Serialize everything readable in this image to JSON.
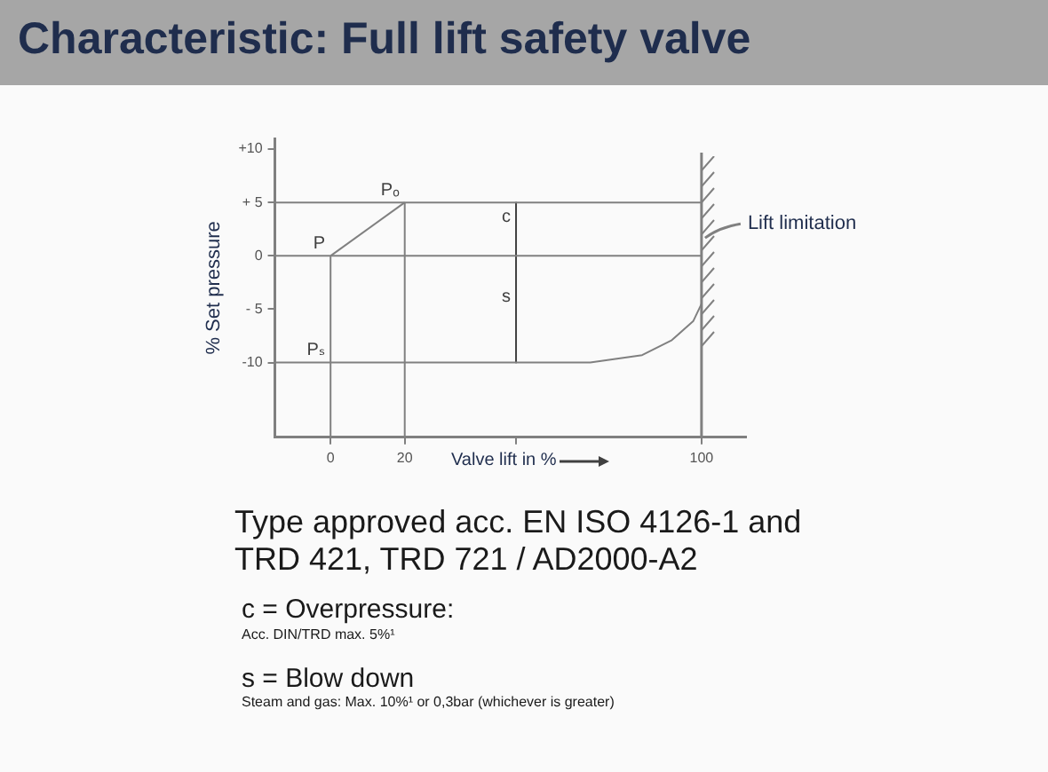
{
  "chart_data": {
    "type": "line",
    "title": "Characteristic: Full lift safety valve",
    "xlabel": "Valve lift in %",
    "ylabel": "% Set pressure",
    "xlim": [
      -15,
      112
    ],
    "ylim": [
      -17,
      11
    ],
    "xticks": [
      0,
      20,
      {
        "value": 50,
        "label": null
      },
      100
    ],
    "yticks": [
      {
        "value": 10,
        "label": "+10"
      },
      {
        "value": 5,
        "label": "+ 5"
      },
      0,
      {
        "value": -5,
        "label": "- 5"
      },
      -10
    ],
    "grid": false,
    "legend": false,
    "marker": "none",
    "line_style": "solid",
    "series": [
      {
        "color": "#808080",
        "x": [
          0,
          20
        ],
        "values": [
          0,
          5
        ]
      },
      {
        "color": "#808080",
        "x": [
          -15,
          100
        ],
        "values": [
          5,
          5
        ]
      },
      {
        "color": "#808080",
        "x": [
          -15,
          100
        ],
        "values": [
          0,
          0
        ]
      },
      {
        "color": "#808080",
        "x": [
          -15,
          70,
          84,
          92,
          97.8,
          100
        ],
        "values": [
          -10,
          -10,
          -9.3,
          -7.9,
          -6.1,
          -4.5
        ]
      },
      {
        "color": "#808080",
        "x": [
          0,
          0
        ],
        "values": [
          -17,
          0
        ]
      },
      {
        "color": "#808080",
        "x": [
          20,
          20
        ],
        "values": [
          -17,
          5
        ]
      },
      {
        "color": "#404040",
        "x": [
          50,
          50,
          50
        ],
        "values": [
          5,
          0,
          -10
        ]
      }
    ],
    "ref_lines": [
      {
        "axis": "x",
        "value": 100,
        "label": "Lift limitation",
        "color": "#808080"
      }
    ],
    "annotations": [
      {
        "text": "P",
        "x": 0,
        "y": 0
      },
      {
        "text": "Pₒ",
        "x": 20,
        "y": 5
      },
      {
        "text": "Pₛ",
        "x": 0,
        "y": -10
      },
      {
        "text": "c",
        "x": 50,
        "y": 2.5
      },
      {
        "text": "s",
        "x": 50,
        "y": -5
      },
      "Type approved acc. EN ISO 4126-1 and TRD 421, TRD 721 / AD2000-A2",
      "c =   Overpressure:",
      "Acc. DIN/TRD  max. 5%¹",
      "s =   Blow down",
      "Steam and gas: Max. 10%¹ or 0,3bar (whichever is greater)"
    ]
  }
}
